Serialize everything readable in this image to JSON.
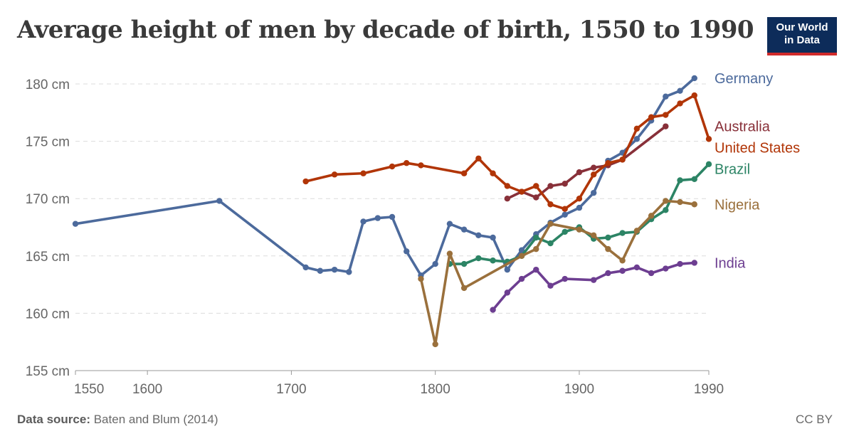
{
  "header": {
    "title": "Average height of men by decade of birth, 1550 to 1990",
    "logo_line1": "Our World",
    "logo_line2": "in Data"
  },
  "footer": {
    "source_label": "Data source:",
    "source_text": "Baten and Blum (2014)",
    "license": "CC BY"
  },
  "chart_data": {
    "type": "line",
    "title": "Average height of men by decade of birth, 1550 to 1990",
    "xlabel": "",
    "ylabel": "",
    "xlim": [
      1550,
      1990
    ],
    "ylim": [
      155,
      180
    ],
    "x_ticks": [
      1550,
      1600,
      1700,
      1800,
      1900,
      1990
    ],
    "y_ticks": [
      {
        "value": 155,
        "label": "155 cm"
      },
      {
        "value": 160,
        "label": "160 cm"
      },
      {
        "value": 165,
        "label": "165 cm"
      },
      {
        "value": 170,
        "label": "170 cm"
      },
      {
        "value": 175,
        "label": "175 cm"
      },
      {
        "value": 180,
        "label": "180 cm"
      }
    ],
    "grid": true,
    "legend": "right-end labels",
    "series": [
      {
        "name": "Germany",
        "color": "#4c6a9c",
        "points": [
          [
            1550,
            167.8
          ],
          [
            1650,
            169.8
          ],
          [
            1710,
            164.0
          ],
          [
            1720,
            163.7
          ],
          [
            1730,
            163.8
          ],
          [
            1740,
            163.6
          ],
          [
            1750,
            168.0
          ],
          [
            1760,
            168.3
          ],
          [
            1770,
            168.4
          ],
          [
            1780,
            165.4
          ],
          [
            1790,
            163.3
          ],
          [
            1800,
            164.3
          ],
          [
            1810,
            167.8
          ],
          [
            1820,
            167.3
          ],
          [
            1830,
            166.8
          ],
          [
            1840,
            166.6
          ],
          [
            1850,
            163.8
          ],
          [
            1860,
            165.5
          ],
          [
            1870,
            166.9
          ],
          [
            1880,
            167.9
          ],
          [
            1890,
            168.6
          ],
          [
            1900,
            169.2
          ],
          [
            1910,
            170.5
          ],
          [
            1920,
            173.3
          ],
          [
            1930,
            174.0
          ],
          [
            1940,
            175.2
          ],
          [
            1950,
            176.8
          ],
          [
            1960,
            178.9
          ],
          [
            1970,
            179.4
          ],
          [
            1980,
            180.5
          ]
        ]
      },
      {
        "name": "Australia",
        "color": "#883039",
        "points": [
          [
            1850,
            170.0
          ],
          [
            1860,
            170.6
          ],
          [
            1870,
            170.1
          ],
          [
            1880,
            171.1
          ],
          [
            1890,
            171.3
          ],
          [
            1900,
            172.3
          ],
          [
            1910,
            172.7
          ],
          [
            1920,
            172.9
          ],
          [
            1930,
            173.4
          ],
          [
            1960,
            176.3
          ]
        ]
      },
      {
        "name": "United States",
        "color": "#b13507",
        "points": [
          [
            1710,
            171.5
          ],
          [
            1730,
            172.1
          ],
          [
            1750,
            172.2
          ],
          [
            1770,
            172.8
          ],
          [
            1780,
            173.1
          ],
          [
            1790,
            172.9
          ],
          [
            1820,
            172.2
          ],
          [
            1830,
            173.5
          ],
          [
            1840,
            172.2
          ],
          [
            1850,
            171.1
          ],
          [
            1860,
            170.6
          ],
          [
            1870,
            171.1
          ],
          [
            1880,
            169.5
          ],
          [
            1890,
            169.1
          ],
          [
            1900,
            170.0
          ],
          [
            1910,
            172.1
          ],
          [
            1920,
            173.1
          ],
          [
            1930,
            173.4
          ],
          [
            1940,
            176.1
          ],
          [
            1950,
            177.1
          ],
          [
            1960,
            177.3
          ],
          [
            1970,
            178.3
          ],
          [
            1980,
            179.0
          ],
          [
            1990,
            175.2
          ]
        ]
      },
      {
        "name": "Brazil",
        "color": "#2c8465",
        "points": [
          [
            1810,
            164.3
          ],
          [
            1820,
            164.3
          ],
          [
            1830,
            164.8
          ],
          [
            1840,
            164.6
          ],
          [
            1850,
            164.5
          ],
          [
            1860,
            165.0
          ],
          [
            1870,
            166.6
          ],
          [
            1880,
            166.1
          ],
          [
            1890,
            167.1
          ],
          [
            1900,
            167.5
          ],
          [
            1910,
            166.5
          ],
          [
            1920,
            166.6
          ],
          [
            1930,
            167.0
          ],
          [
            1940,
            167.1
          ],
          [
            1950,
            168.2
          ],
          [
            1960,
            169.0
          ],
          [
            1970,
            171.6
          ],
          [
            1980,
            171.7
          ],
          [
            1990,
            173.0
          ]
        ]
      },
      {
        "name": "Nigeria",
        "color": "#9a703c",
        "points": [
          [
            1790,
            163.0
          ],
          [
            1800,
            157.3
          ],
          [
            1810,
            165.2
          ],
          [
            1820,
            162.2
          ],
          [
            1860,
            165.0
          ],
          [
            1870,
            165.6
          ],
          [
            1880,
            167.8
          ],
          [
            1900,
            167.3
          ],
          [
            1910,
            166.8
          ],
          [
            1920,
            165.6
          ],
          [
            1930,
            164.6
          ],
          [
            1940,
            167.2
          ],
          [
            1950,
            168.5
          ],
          [
            1960,
            169.8
          ],
          [
            1970,
            169.7
          ],
          [
            1980,
            169.5
          ]
        ]
      },
      {
        "name": "India",
        "color": "#6d3e91",
        "points": [
          [
            1840,
            160.3
          ],
          [
            1850,
            161.8
          ],
          [
            1860,
            163.0
          ],
          [
            1870,
            163.8
          ],
          [
            1880,
            162.4
          ],
          [
            1890,
            163.0
          ],
          [
            1910,
            162.9
          ],
          [
            1920,
            163.5
          ],
          [
            1930,
            163.7
          ],
          [
            1940,
            164.0
          ],
          [
            1950,
            163.5
          ],
          [
            1960,
            163.9
          ],
          [
            1970,
            164.3
          ],
          [
            1980,
            164.4
          ]
        ]
      }
    ]
  }
}
